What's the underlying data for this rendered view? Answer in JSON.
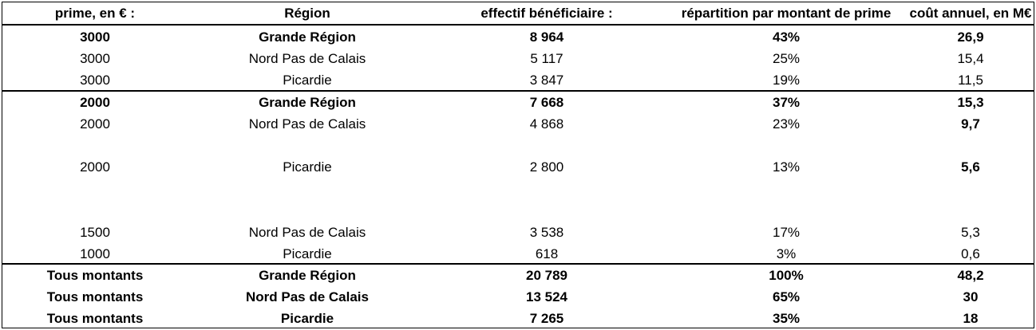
{
  "headers": [
    "prime, en € :",
    "Région",
    "effectif bénéficiaire :",
    "répartition par montant de prime",
    "coût annuel, en M€"
  ],
  "rows": [
    [
      "3000",
      "Grande Région",
      "8 964",
      "43%",
      "26,9"
    ],
    [
      "3000",
      "Nord Pas de Calais",
      "5 117",
      "25%",
      "15,4"
    ],
    [
      "3000",
      "Picardie",
      "3 847",
      "19%",
      "11,5"
    ],
    [
      "2000",
      "Grande Région",
      "7 668",
      "37%",
      "15,3"
    ],
    [
      "2000",
      "Nord Pas de Calais",
      "4 868",
      "23%",
      "9,7"
    ],
    [
      "2000",
      "Picardie",
      "2 800",
      "13%",
      "5,6"
    ],
    [
      "1500",
      "Nord Pas de Calais",
      "3 538",
      "17%",
      "5,3"
    ],
    [
      "1000",
      "Picardie",
      "618",
      "3%",
      "0,6"
    ],
    [
      "Tous montants",
      "Grande Région",
      "20 789",
      "100%",
      "48,2"
    ],
    [
      "Tous montants",
      "Nord Pas de Calais",
      "13 524",
      "65%",
      "30"
    ],
    [
      "Tous montants",
      "Picardie",
      "7 265",
      "35%",
      "18"
    ]
  ]
}
